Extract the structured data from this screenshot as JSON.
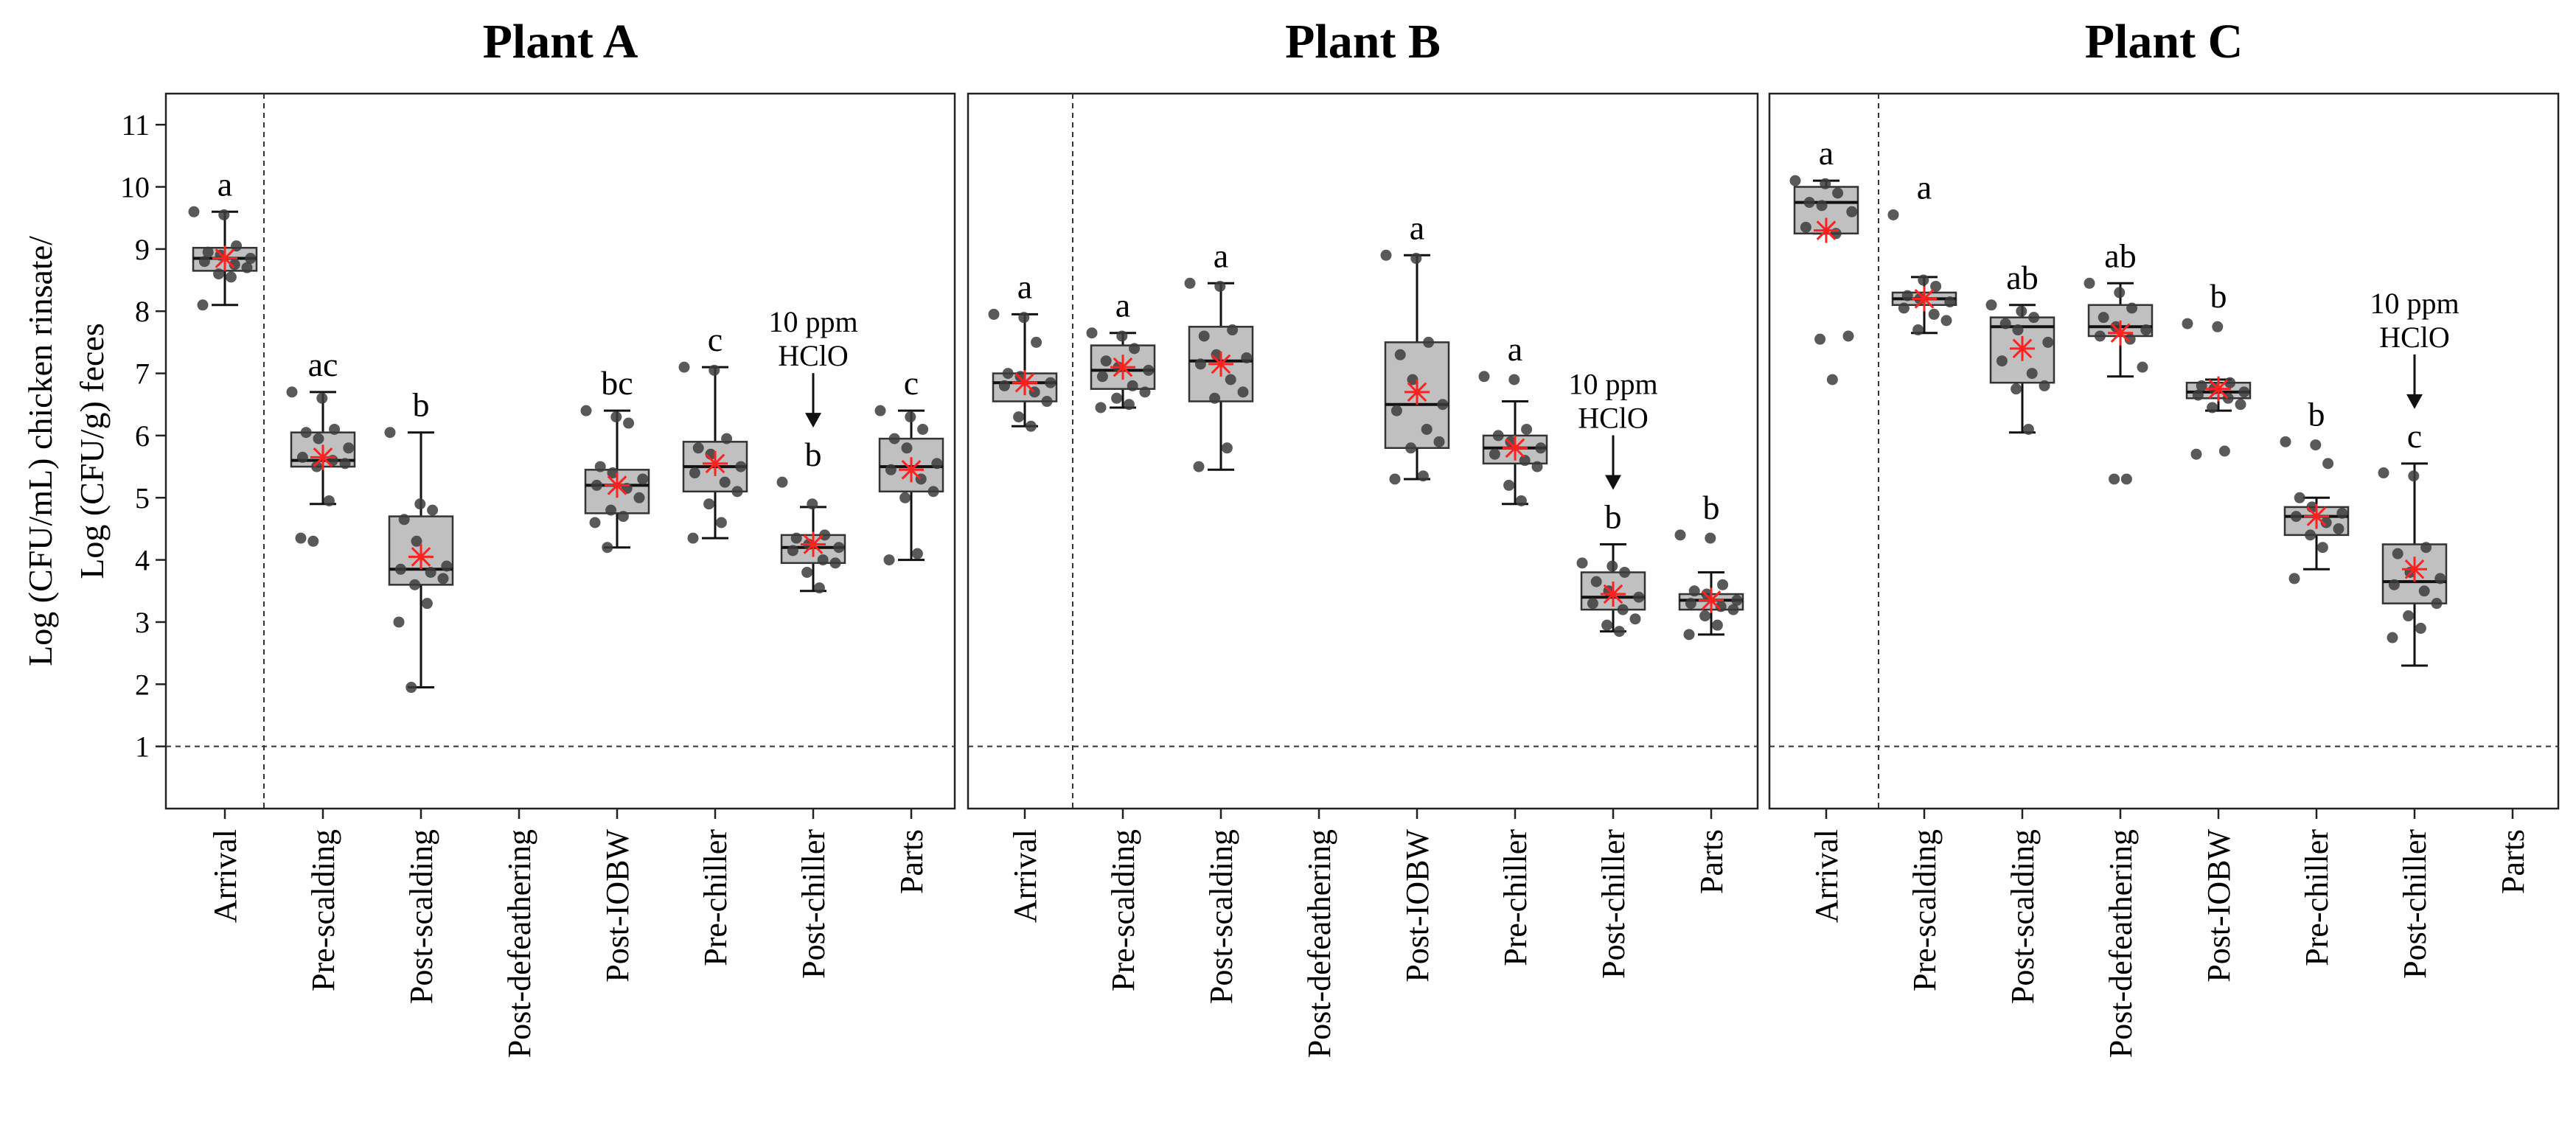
{
  "chart_data": {
    "type": "box",
    "ylabel_lines": [
      "Log (CFU/mL) chicken rinsate/",
      "Log (CFU/g) feces"
    ],
    "ylim": [
      0,
      11.5
    ],
    "yticks": [
      1,
      2,
      3,
      4,
      5,
      6,
      7,
      8,
      9,
      10,
      11
    ],
    "reference_line": 1,
    "categories": [
      "Arrival",
      "Pre-scalding",
      "Post-scalding",
      "Post-defeathering",
      "Post-IOBW",
      "Pre-chiller",
      "Post-chiller",
      "Parts"
    ],
    "colors": {
      "box_fill": "#c0c0c0",
      "box_edge": "#333333",
      "points": "#3c3c3c",
      "mean_marker": "#ff2020"
    },
    "panels": [
      {
        "title": "Plant A",
        "annotation": {
          "category": "Post-chiller",
          "lines": [
            "10 ppm",
            "HClO"
          ]
        },
        "groups": [
          {
            "category": "Arrival",
            "q1": 8.65,
            "median": 8.85,
            "q3": 9.02,
            "whisker_low": 8.1,
            "whisker_high": 9.6,
            "mean": 8.85,
            "letter": "a",
            "points": [
              9.6,
              9.55,
              9.05,
              8.95,
              8.9,
              8.85,
              8.8,
              8.75,
              8.7,
              8.6,
              8.55,
              8.1
            ]
          },
          {
            "category": "Pre-scalding",
            "q1": 5.5,
            "median": 5.6,
            "q3": 6.05,
            "whisker_low": 4.9,
            "whisker_high": 6.7,
            "mean": 5.65,
            "letter": "ac",
            "points": [
              6.7,
              6.6,
              6.1,
              6.05,
              5.95,
              5.8,
              5.65,
              5.6,
              5.55,
              5.5,
              4.95,
              4.35,
              4.3
            ]
          },
          {
            "category": "Post-scalding",
            "q1": 3.6,
            "median": 3.85,
            "q3": 4.7,
            "whisker_low": 1.95,
            "whisker_high": 6.05,
            "mean": 4.05,
            "letter": "b",
            "points": [
              6.05,
              4.9,
              4.8,
              4.65,
              4.3,
              3.9,
              3.85,
              3.8,
              3.7,
              3.6,
              3.3,
              3.0,
              1.95
            ]
          },
          {
            "category": "Post-defeathering",
            "letter": "",
            "points": []
          },
          {
            "category": "Post-IOBW",
            "q1": 4.75,
            "median": 5.2,
            "q3": 5.45,
            "whisker_low": 4.2,
            "whisker_high": 6.4,
            "mean": 5.2,
            "letter": "bc",
            "points": [
              6.4,
              6.3,
              6.2,
              5.5,
              5.4,
              5.3,
              5.2,
              5.15,
              5.0,
              4.8,
              4.7,
              4.6,
              4.2
            ]
          },
          {
            "category": "Pre-chiller",
            "q1": 5.1,
            "median": 5.5,
            "q3": 5.9,
            "whisker_low": 4.35,
            "whisker_high": 7.1,
            "mean": 5.55,
            "letter": "c",
            "points": [
              7.1,
              7.05,
              5.95,
              5.8,
              5.7,
              5.5,
              5.4,
              5.25,
              5.1,
              4.9,
              4.6,
              4.35
            ]
          },
          {
            "category": "Post-chiller",
            "q1": 3.95,
            "median": 4.2,
            "q3": 4.4,
            "whisker_low": 3.5,
            "whisker_high": 4.85,
            "mean": 4.25,
            "letter": "b",
            "points": [
              5.25,
              4.9,
              4.4,
              4.35,
              4.25,
              4.2,
              4.15,
              4.0,
              3.95,
              3.8,
              3.55
            ]
          },
          {
            "category": "Parts",
            "q1": 5.1,
            "median": 5.5,
            "q3": 5.95,
            "whisker_low": 4.0,
            "whisker_high": 6.4,
            "mean": 5.45,
            "letter": "c",
            "points": [
              6.4,
              6.3,
              6.1,
              5.95,
              5.8,
              5.55,
              5.45,
              5.3,
              5.1,
              5.0,
              4.1,
              4.0
            ]
          }
        ]
      },
      {
        "title": "Plant B",
        "annotation": {
          "category": "Post-chiller",
          "lines": [
            "10 ppm",
            "HClO"
          ]
        },
        "groups": [
          {
            "category": "Arrival",
            "q1": 6.55,
            "median": 6.85,
            "q3": 7.0,
            "whisker_low": 6.15,
            "whisker_high": 7.95,
            "mean": 6.85,
            "letter": "a",
            "points": [
              7.95,
              7.9,
              7.5,
              7.0,
              6.95,
              6.85,
              6.8,
              6.7,
              6.55,
              6.3,
              6.15
            ]
          },
          {
            "category": "Pre-scalding",
            "q1": 6.75,
            "median": 7.05,
            "q3": 7.45,
            "whisker_low": 6.45,
            "whisker_high": 7.65,
            "mean": 7.1,
            "letter": "a",
            "points": [
              7.65,
              7.6,
              7.4,
              7.2,
              7.1,
              7.05,
              6.95,
              6.8,
              6.7,
              6.6,
              6.5,
              6.45
            ]
          },
          {
            "category": "Post-scalding",
            "q1": 6.55,
            "median": 7.2,
            "q3": 7.75,
            "whisker_low": 5.45,
            "whisker_high": 8.45,
            "mean": 7.15,
            "letter": "a",
            "points": [
              8.45,
              8.4,
              7.7,
              7.6,
              7.3,
              7.25,
              7.15,
              6.9,
              6.7,
              6.6,
              5.8,
              5.5
            ]
          },
          {
            "category": "Post-defeathering",
            "letter": "",
            "points": []
          },
          {
            "category": "Post-IOBW",
            "q1": 5.8,
            "median": 6.5,
            "q3": 7.5,
            "whisker_low": 5.3,
            "whisker_high": 8.9,
            "mean": 6.7,
            "letter": "a",
            "points": [
              8.9,
              8.85,
              7.5,
              7.3,
              6.9,
              6.5,
              6.4,
              6.1,
              5.9,
              5.8,
              5.35,
              5.3
            ]
          },
          {
            "category": "Pre-chiller",
            "q1": 5.55,
            "median": 5.8,
            "q3": 6.0,
            "whisker_low": 4.9,
            "whisker_high": 6.55,
            "mean": 5.8,
            "letter": "a",
            "points": [
              6.95,
              6.9,
              6.1,
              6.0,
              5.9,
              5.8,
              5.7,
              5.6,
              5.5,
              5.2,
              4.95
            ]
          },
          {
            "category": "Post-chiller",
            "q1": 3.2,
            "median": 3.4,
            "q3": 3.8,
            "whisker_low": 2.85,
            "whisker_high": 4.25,
            "mean": 3.45,
            "letter": "b",
            "points": [
              3.95,
              3.9,
              3.8,
              3.65,
              3.5,
              3.4,
              3.3,
              3.2,
              3.05,
              2.95,
              2.85
            ]
          },
          {
            "category": "Parts",
            "q1": 3.2,
            "median": 3.35,
            "q3": 3.45,
            "whisker_low": 2.8,
            "whisker_high": 3.8,
            "mean": 3.35,
            "letter": "b",
            "points": [
              4.4,
              4.35,
              3.6,
              3.5,
              3.45,
              3.35,
              3.3,
              3.25,
              3.2,
              3.1,
              2.95,
              2.8
            ]
          }
        ]
      },
      {
        "title": "Plant C",
        "annotation": {
          "category": "Post-chiller",
          "lines": [
            "10 ppm",
            "HClO"
          ]
        },
        "groups": [
          {
            "category": "Arrival",
            "q1": 9.25,
            "median": 9.75,
            "q3": 10.0,
            "whisker_low": 9.25,
            "whisker_high": 10.1,
            "mean": 9.3,
            "letter": "a",
            "points": [
              10.1,
              10.05,
              9.9,
              9.75,
              9.7,
              9.6,
              9.35,
              9.25,
              7.6,
              7.55,
              6.9
            ]
          },
          {
            "category": "Pre-scalding",
            "q1": 8.1,
            "median": 8.2,
            "q3": 8.3,
            "whisker_low": 7.65,
            "whisker_high": 8.55,
            "mean": 8.2,
            "letter": "a",
            "points": [
              9.55,
              8.5,
              8.4,
              8.25,
              8.2,
              8.15,
              8.05,
              7.95,
              7.85,
              7.7
            ]
          },
          {
            "category": "Post-scalding",
            "q1": 6.85,
            "median": 7.75,
            "q3": 7.9,
            "whisker_low": 6.05,
            "whisker_high": 8.1,
            "mean": 7.4,
            "letter": "ab",
            "points": [
              8.1,
              8.0,
              7.9,
              7.8,
              7.7,
              7.5,
              7.2,
              7.0,
              6.8,
              6.75,
              6.1
            ]
          },
          {
            "category": "Post-defeathering",
            "q1": 7.6,
            "median": 7.75,
            "q3": 8.1,
            "whisker_low": 6.95,
            "whisker_high": 8.45,
            "mean": 7.65,
            "letter": "ab",
            "points": [
              8.45,
              8.3,
              8.05,
              7.9,
              7.75,
              7.7,
              7.6,
              7.55,
              7.1,
              5.3,
              5.3
            ]
          },
          {
            "category": "Post-IOBW",
            "q1": 6.6,
            "median": 6.7,
            "q3": 6.85,
            "whisker_low": 6.4,
            "whisker_high": 6.9,
            "mean": 6.75,
            "letter": "b",
            "points": [
              7.8,
              7.75,
              6.85,
              6.8,
              6.75,
              6.7,
              6.65,
              6.6,
              6.5,
              6.45,
              5.75,
              5.7
            ]
          },
          {
            "category": "Pre-chiller",
            "q1": 4.4,
            "median": 4.7,
            "q3": 4.85,
            "whisker_low": 3.85,
            "whisker_high": 5.0,
            "mean": 4.7,
            "letter": "b",
            "points": [
              5.9,
              5.85,
              5.55,
              5.0,
              4.85,
              4.75,
              4.7,
              4.6,
              4.5,
              4.4,
              4.2,
              3.7
            ]
          },
          {
            "category": "Post-chiller",
            "q1": 3.3,
            "median": 3.65,
            "q3": 4.25,
            "whisker_low": 2.3,
            "whisker_high": 5.55,
            "mean": 3.85,
            "letter": "c",
            "points": [
              5.4,
              5.35,
              4.2,
              4.1,
              3.8,
              3.7,
              3.6,
              3.5,
              3.3,
              3.1,
              2.9,
              2.75
            ]
          },
          {
            "category": "Parts",
            "letter": "",
            "points": []
          }
        ]
      }
    ]
  }
}
